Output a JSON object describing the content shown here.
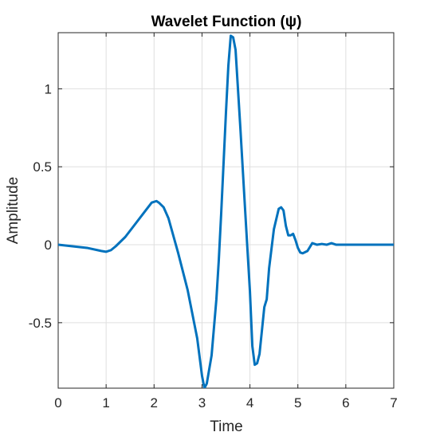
{
  "chart_data": {
    "type": "line",
    "title": "Wavelet Function (ψ)",
    "xlabel": "Time",
    "ylabel": "Amplitude",
    "xlim": [
      0,
      7
    ],
    "ylim": [
      -0.92,
      1.36
    ],
    "xticks": [
      0,
      1,
      2,
      3,
      4,
      5,
      6,
      7
    ],
    "xtick_labels": [
      "0",
      "1",
      "2",
      "3",
      "4",
      "5",
      "6",
      "7"
    ],
    "yticks": [
      -0.5,
      0,
      0.5,
      1
    ],
    "ytick_labels": [
      "-0.5",
      "0",
      "0.5",
      "1"
    ],
    "grid": true,
    "line_color": "#0072BD",
    "series": [
      {
        "x": [
          0,
          0.3,
          0.6,
          0.9,
          1.0,
          1.1,
          1.2,
          1.4,
          1.6,
          1.8,
          1.95,
          2.05,
          2.1,
          2.2,
          2.3,
          2.5,
          2.7,
          2.9,
          3.0,
          3.05,
          3.1,
          3.2,
          3.3,
          3.35,
          3.4,
          3.5,
          3.55,
          3.6,
          3.65,
          3.7,
          3.8,
          3.9,
          4.0,
          4.05,
          4.1,
          4.15,
          4.2,
          4.25,
          4.3,
          4.35,
          4.4,
          4.5,
          4.6,
          4.65,
          4.7,
          4.75,
          4.8,
          4.85,
          4.9,
          4.95,
          5.0,
          5.05,
          5.1,
          5.2,
          5.3,
          5.4,
          5.5,
          5.6,
          5.7,
          5.8,
          6.0,
          6.5,
          7.0
        ],
        "y": [
          0,
          -0.01,
          -0.02,
          -0.04,
          -0.045,
          -0.035,
          -0.01,
          0.05,
          0.13,
          0.21,
          0.27,
          0.28,
          0.27,
          0.24,
          0.17,
          -0.05,
          -0.29,
          -0.6,
          -0.84,
          -0.92,
          -0.89,
          -0.71,
          -0.35,
          -0.1,
          0.2,
          0.85,
          1.15,
          1.34,
          1.33,
          1.25,
          0.75,
          0.22,
          -0.3,
          -0.65,
          -0.77,
          -0.76,
          -0.7,
          -0.55,
          -0.4,
          -0.35,
          -0.15,
          0.1,
          0.23,
          0.24,
          0.22,
          0.12,
          0.06,
          0.06,
          0.07,
          0.03,
          -0.02,
          -0.05,
          -0.055,
          -0.04,
          0.01,
          0.0,
          0.005,
          0.0,
          0.01,
          0.0,
          0.0,
          0.0,
          0.0
        ]
      }
    ]
  }
}
